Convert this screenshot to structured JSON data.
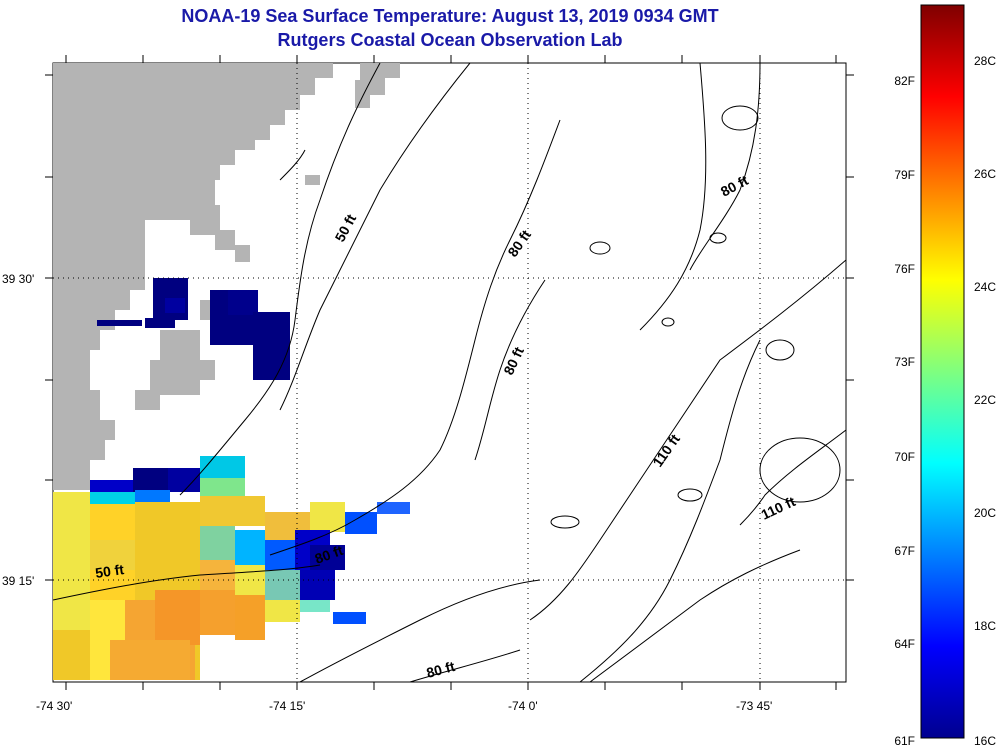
{
  "header": {
    "title": "NOAA-19 Sea Surface Temperature:  August 13, 2019 0934 GMT",
    "subtitle": "Rutgers Coastal Ocean Observation Lab"
  },
  "map": {
    "lon_labels": [
      "-74 30'",
      "-74 15'",
      "-74 0'",
      "-73 45'"
    ],
    "lat_labels": [
      "39 30'",
      "39 15'"
    ],
    "contour_labels": [
      "50 ft",
      "80 ft",
      "80 ft",
      "80 ft",
      "110 ft",
      "110 ft",
      "50 ft",
      "80 ft",
      "80 ft"
    ],
    "colors": {
      "land": "#b4b4b4",
      "contour": "#000000",
      "grid": "#000000"
    }
  },
  "colorbar": {
    "fahrenheit_labels": [
      "82F",
      "79F",
      "76F",
      "73F",
      "70F",
      "67F",
      "64F",
      "61F"
    ],
    "celsius_labels": [
      "28C",
      "26C",
      "24C",
      "22C",
      "20C",
      "18C",
      "16C"
    ],
    "min_c": 16,
    "max_c": 29,
    "colormap": "jet"
  }
}
